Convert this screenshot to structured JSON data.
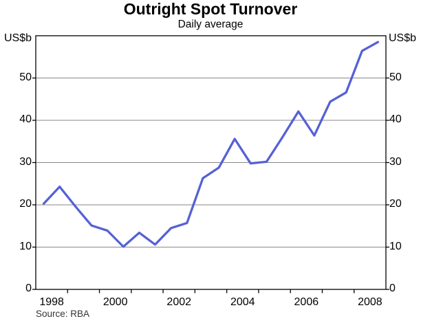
{
  "chart": {
    "title": "Outright Spot Turnover",
    "subtitle": "Daily average",
    "unit_left": "US$b",
    "unit_right": "US$b",
    "source": "Source: RBA"
  },
  "chart_data": {
    "type": "line",
    "title": "Outright Spot Turnover",
    "subtitle": "Daily average",
    "ylabel": "US$b",
    "frequency": "semiannual",
    "x": [
      1998.25,
      1998.75,
      1999.25,
      1999.75,
      2000.25,
      2000.75,
      2001.25,
      2001.75,
      2002.25,
      2002.75,
      2003.25,
      2003.75,
      2004.25,
      2004.75,
      2005.25,
      2005.75,
      2006.25,
      2006.75,
      2007.25,
      2007.75,
      2008.25,
      2008.75
    ],
    "periods": [
      "1998 H1",
      "1998 H2",
      "1999 H1",
      "1999 H2",
      "2000 H1",
      "2000 H2",
      "2001 H1",
      "2001 H2",
      "2002 H1",
      "2002 H2",
      "2003 H1",
      "2003 H2",
      "2004 H1",
      "2004 H2",
      "2005 H1",
      "2005 H2",
      "2006 H1",
      "2006 H2",
      "2007 H1",
      "2007 H2",
      "2008 H1",
      "2008 H2"
    ],
    "values": [
      20.3,
      24.3,
      19.6,
      15.1,
      13.9,
      10.1,
      13.4,
      10.6,
      14.5,
      15.7,
      26.3,
      28.8,
      35.6,
      29.8,
      30.2,
      36.0,
      42.1,
      36.4,
      44.4,
      46.6,
      56.4,
      58.5
    ],
    "xlim": [
      1998,
      2009
    ],
    "ylim": [
      0,
      60
    ],
    "y_ticks": [
      0,
      10,
      20,
      30,
      40,
      50
    ],
    "x_tick_years": [
      1999,
      2000,
      2001,
      2002,
      2003,
      2004,
      2005,
      2006,
      2007,
      2008
    ],
    "x_axis_labels": [
      "1998",
      "2000",
      "2002",
      "2004",
      "2006",
      "2008"
    ],
    "grid": true,
    "legend": "none",
    "line_color": "#5561d6",
    "grid_color": "#878787",
    "axis_color": "#000000"
  }
}
